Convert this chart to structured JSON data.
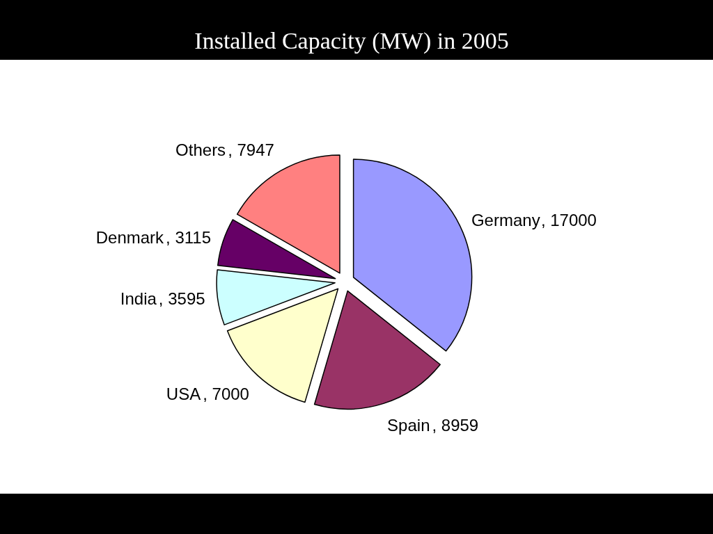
{
  "chart_data": {
    "type": "pie",
    "title": "Installed Capacity (MW) in 2005",
    "categories": [
      "Germany",
      "Spain",
      "USA",
      "India",
      "Denmark",
      "Others"
    ],
    "values": [
      17000,
      8959,
      7000,
      3595,
      3115,
      7947
    ],
    "value_labels": [
      ", 17000",
      ", 8959",
      ", 7000",
      ", 3595",
      ", 3115",
      ", 7947"
    ],
    "colors": [
      "#9999ff",
      "#993366",
      "#ffffcc",
      "#ccffff",
      "#660066",
      "#ff8080"
    ]
  }
}
